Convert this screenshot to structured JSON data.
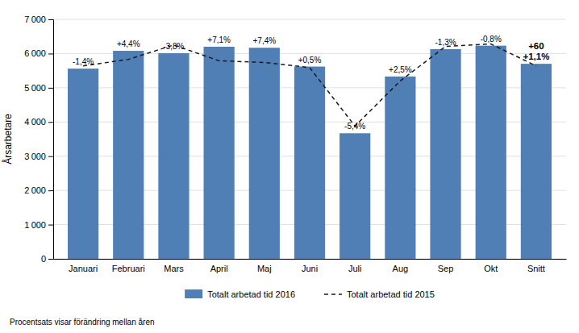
{
  "chart_data": {
    "type": "bar",
    "categories": [
      "Januari",
      "Februari",
      "Mars",
      "April",
      "Maj",
      "Juni",
      "Juli",
      "Aug",
      "Sep",
      "Okt",
      "Snitt"
    ],
    "series": [
      {
        "name": "Totalt arbetad tid 2016",
        "type": "bar",
        "color": "#4f7fb5",
        "values": [
          5560,
          6080,
          6010,
          6200,
          6170,
          5620,
          3670,
          5330,
          6130,
          6230,
          5700
        ]
      },
      {
        "name": "Totalt arbetad tid 2015",
        "type": "line",
        "color": "#1a1a1a",
        "line_style": "dashed",
        "values": [
          5640,
          5830,
          6250,
          5790,
          5740,
          5590,
          3880,
          5200,
          6210,
          6280,
          5640
        ]
      }
    ],
    "annotations": [
      "-1,4%",
      "+4,4%",
      "-3,8%",
      "+7,1%",
      "+7,4%",
      "+0,5%",
      "-5,4%",
      "+2,5%",
      "-1,3%",
      "-0,8%",
      "+60\n+1,1%"
    ],
    "ylabel": "Årsarbetare",
    "ylim": [
      0,
      7000
    ],
    "yticks": [
      0,
      {
        "value": 1000,
        "label": "1 000"
      },
      {
        "value": 2000,
        "label": "2 000"
      },
      {
        "value": 3000,
        "label": "3 000"
      },
      {
        "value": 4000,
        "label": "4 000"
      },
      {
        "value": 5000,
        "label": "5 000"
      },
      {
        "value": 6000,
        "label": "6 000"
      },
      {
        "value": 7000,
        "label": "7 000"
      }
    ],
    "grid": true,
    "legend": "bottom",
    "footnote": "Procentsats visar förändring mellan åren"
  }
}
